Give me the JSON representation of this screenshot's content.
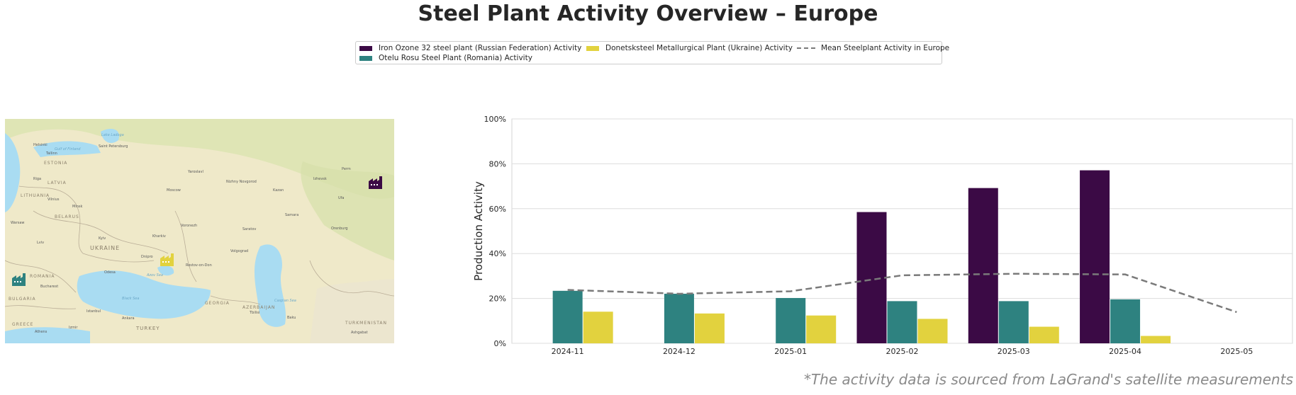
{
  "title": "Steel Plant Activity Overview – Europe",
  "footnote": "*The activity data is sourced from LaGrand's satellite measurements",
  "legend": {
    "iron_ozone": "Iron Ozone 32 steel plant (Russian Federation) Activity",
    "donetsk": "Donetsksteel Metallurgical Plant (Ukraine) Activity",
    "mean": "Mean Steelplant Activity in Europe",
    "otelu": "Otelu Rosu Steel Plant (Romania) Activity"
  },
  "colors": {
    "iron_ozone": "#3b0a45",
    "otelu": "#2e8280",
    "donetsk": "#e2d23e",
    "mean": "#7a7a7a"
  },
  "map": {
    "icons": [
      "factory-icon-iron-ozone",
      "factory-icon-donetsk",
      "factory-icon-otelu"
    ],
    "labels": {
      "countries": [
        "ESTONIA",
        "LATVIA",
        "LITHUANIA",
        "BELARUS",
        "UKRAINE",
        "ROMANIA",
        "BULGARIA",
        "GREECE",
        "TURKEY",
        "GEORGIA",
        "AZERBAIJAN",
        "TURKMENISTAN"
      ],
      "cities": [
        "Helsinki",
        "Tallinn",
        "Saint Petersburg",
        "Riga",
        "Vilnius",
        "Minsk",
        "Warsaw",
        "Moscow",
        "Yaroslavl",
        "Nizhny Novgorod",
        "Kazan",
        "Izhevsk",
        "Perm",
        "Ufa",
        "Samara",
        "Saratov",
        "Voronezh",
        "Kharkiv",
        "Kyiv",
        "Lviv",
        "Dnipro",
        "Odesa",
        "Rostov-on-Don",
        "Volgograd",
        "Orenburg",
        "Bucharest",
        "Istanbul",
        "Ankara",
        "Tbilisi",
        "Baku",
        "Athens",
        "Izmir",
        "Ashgabat"
      ],
      "seas": [
        "Black Sea",
        "Caspian Sea",
        "Azov Sea",
        "Gulf of Finland",
        "Lake Ladoga"
      ]
    }
  },
  "chart_data": {
    "type": "bar",
    "categories": [
      "2024-11",
      "2024-12",
      "2025-01",
      "2025-02",
      "2025-03",
      "2025-04",
      "2025-05"
    ],
    "series": [
      {
        "name": "Iron Ozone 32 steel plant (Russian Federation) Activity",
        "values": [
          null,
          null,
          null,
          58.5,
          69.2,
          77.1,
          null
        ]
      },
      {
        "name": "Otelu Rosu Steel Plant (Romania) Activity",
        "values": [
          23.4,
          22.1,
          20.2,
          18.8,
          18.8,
          19.6,
          null
        ]
      },
      {
        "name": "Donetsksteel Metallurgical Plant (Ukraine) Activity",
        "values": [
          14.1,
          13.3,
          12.4,
          10.9,
          7.4,
          3.3,
          null
        ]
      }
    ],
    "line_series": {
      "name": "Mean Steelplant Activity in Europe",
      "values": [
        23.8,
        22.1,
        23.2,
        30.3,
        31.0,
        30.7,
        13.9
      ]
    },
    "ylabel": "Production Activity",
    "xlabel": "",
    "ylim": [
      0,
      100
    ],
    "yticks": [
      "0%",
      "20%",
      "40%",
      "60%",
      "80%",
      "100%"
    ],
    "grid": true,
    "legend_position": "top-center"
  }
}
